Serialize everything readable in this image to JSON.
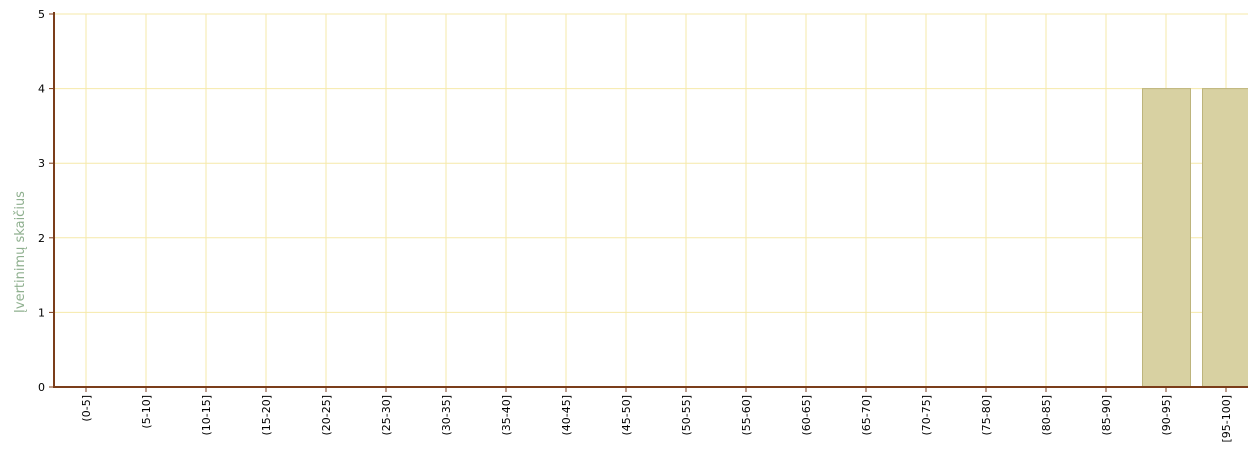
{
  "chart_data": {
    "type": "bar",
    "ylabel": "Įvertinimų skaičius",
    "categories": [
      "(0-5]",
      "(5-10]",
      "(10-15]",
      "(15-20]",
      "(20-25]",
      "(25-30]",
      "(30-35]",
      "(35-40]",
      "(40-45]",
      "(45-50]",
      "(50-55]",
      "(55-60]",
      "(60-65]",
      "(65-70]",
      "(70-75]",
      "(75-80]",
      "(80-85]",
      "(85-90]",
      "(90-95]",
      "[95-100]"
    ],
    "values": [
      0,
      0,
      0,
      0,
      0,
      0,
      0,
      0,
      0,
      0,
      0,
      0,
      0,
      0,
      0,
      0,
      0,
      0,
      4,
      4
    ],
    "ylim": [
      0,
      5
    ],
    "yticks": [
      0,
      1,
      2,
      3,
      4,
      5
    ],
    "grid": true,
    "legend": "none",
    "colors": {
      "bar_fill": "#d8d1a2",
      "bar_stroke": "#bdb47c",
      "grid": "#f6e9a9",
      "axis": "#7b3d1a",
      "ylabel": "#8fb08f"
    }
  }
}
